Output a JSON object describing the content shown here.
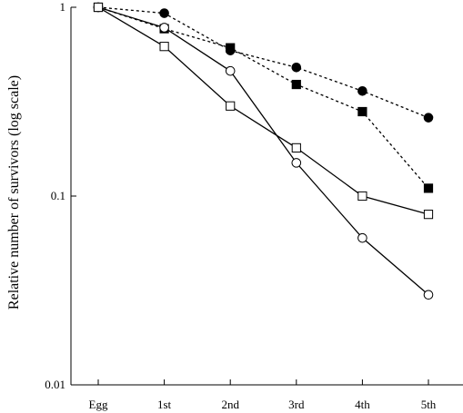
{
  "chart_data": {
    "type": "line",
    "title": "",
    "xlabel": "",
    "ylabel": "Relative number of survivors (log scale)",
    "y_scale": "log",
    "ylim": [
      0.01,
      1
    ],
    "y_ticks": [
      "0.01",
      "0.1",
      "1"
    ],
    "grid": false,
    "legend": "none",
    "categories": [
      "Egg",
      "1st",
      "2nd",
      "3rd",
      "4th",
      "5th"
    ],
    "series": [
      {
        "marker": "filled-circle",
        "line": "dotted",
        "color": "#000000",
        "values": [
          1.0,
          0.93,
          0.59,
          0.48,
          0.36,
          0.26
        ]
      },
      {
        "marker": "filled-square",
        "line": "dotted",
        "color": "#000000",
        "values": [
          1.0,
          0.77,
          0.61,
          0.39,
          0.28,
          0.11
        ]
      },
      {
        "marker": "open-circle",
        "line": "solid",
        "color": "#000000",
        "values": [
          1.0,
          0.78,
          0.46,
          0.15,
          0.06,
          0.03
        ]
      },
      {
        "marker": "open-square",
        "line": "solid",
        "color": "#000000",
        "values": [
          1.0,
          0.62,
          0.3,
          0.18,
          0.1,
          0.08
        ]
      }
    ]
  }
}
